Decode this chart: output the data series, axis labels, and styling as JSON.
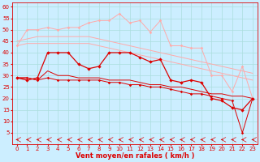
{
  "xlabel": "Vent moyen/en rafales ( km/h )",
  "background_color": "#cceeff",
  "grid_color": "#aadddd",
  "x_values": [
    0,
    1,
    2,
    3,
    4,
    5,
    6,
    7,
    8,
    9,
    10,
    11,
    12,
    13,
    14,
    15,
    16,
    17,
    18,
    19,
    20,
    21,
    22,
    23
  ],
  "line1_color": "#ffaaaa",
  "line2_color": "#ffaaaa",
  "line3_color": "#ffaaaa",
  "line4_color": "#dd0000",
  "line5_color": "#dd0000",
  "line6_color": "#dd0000",
  "line1_y": [
    43,
    50,
    50,
    51,
    50,
    51,
    51,
    53,
    54,
    54,
    57,
    53,
    54,
    49,
    54,
    43,
    43,
    42,
    42,
    30,
    30,
    23,
    34,
    20
  ],
  "line2_y": [
    45,
    46,
    47,
    47,
    47,
    47,
    47,
    47,
    46,
    45,
    44,
    43,
    42,
    41,
    40,
    39,
    38,
    37,
    36,
    35,
    34,
    33,
    32,
    31
  ],
  "line3_y": [
    43,
    44,
    44,
    44,
    44,
    44,
    44,
    44,
    43,
    42,
    41,
    40,
    39,
    38,
    37,
    36,
    35,
    34,
    33,
    32,
    31,
    30,
    29,
    28
  ],
  "line4_y": [
    29,
    28,
    29,
    40,
    40,
    40,
    35,
    33,
    34,
    40,
    40,
    40,
    38,
    36,
    37,
    28,
    27,
    28,
    27,
    20,
    19,
    16,
    15,
    20
  ],
  "line5_y": [
    29,
    29,
    28,
    32,
    30,
    30,
    29,
    29,
    29,
    28,
    28,
    28,
    27,
    26,
    26,
    25,
    25,
    24,
    23,
    22,
    22,
    21,
    21,
    20
  ],
  "line6_y": [
    29,
    29,
    28,
    29,
    28,
    28,
    28,
    28,
    28,
    27,
    27,
    26,
    26,
    25,
    25,
    24,
    23,
    22,
    22,
    21,
    20,
    19,
    5,
    20
  ],
  "ylim": [
    0,
    62
  ],
  "yticks": [
    5,
    10,
    15,
    20,
    25,
    30,
    35,
    40,
    45,
    50,
    55,
    60
  ],
  "xlim": [
    -0.5,
    23.5
  ],
  "xticks": [
    0,
    1,
    2,
    3,
    4,
    5,
    6,
    7,
    8,
    9,
    10,
    11,
    12,
    13,
    14,
    15,
    16,
    17,
    18,
    19,
    20,
    21,
    22,
    23
  ],
  "xlabel_fontsize": 6,
  "tick_fontsize": 5
}
